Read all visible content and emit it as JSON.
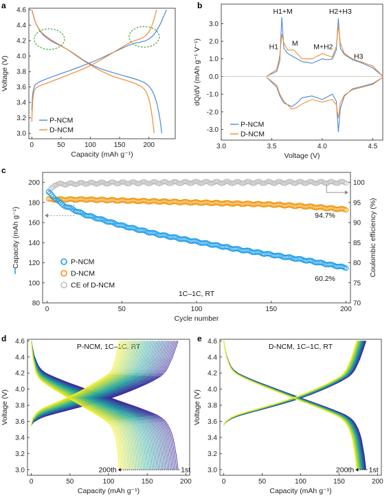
{
  "panel_letters": {
    "a": "a",
    "b": "b",
    "c": "c",
    "d": "d",
    "e": "e"
  },
  "colors": {
    "p_ncm": "#4a86d8",
    "d_ncm": "#ef8a2e",
    "p_ncm_marker": "#1a9be8",
    "d_ncm_marker": "#f0960a",
    "ce_marker": "#bdbdbd",
    "circle_highlight": "#3aa33a",
    "cycle_start": "#3b1f9a",
    "cycle_mid": "#1fa6a0",
    "cycle_end": "#f2ee1c"
  },
  "chart_data": [
    {
      "panel": "a",
      "type": "line",
      "xlabel": "Capacity (mAh g⁻¹)",
      "ylabel": "Voltage (V)",
      "xlim": [
        -5,
        245
      ],
      "ylim": [
        2.93,
        4.62
      ],
      "xticks": [
        0,
        50,
        100,
        150,
        200
      ],
      "yticks": [
        3.0,
        3.2,
        3.4,
        3.6,
        3.8,
        4.0,
        4.2,
        4.4,
        4.6
      ],
      "legend": {
        "position": "bottom-left",
        "entries": [
          "P-NCM",
          "D-NCM"
        ]
      },
      "series": [
        {
          "name": "P-NCM",
          "branch": "charge",
          "capacity": [
            0,
            2,
            10,
            30,
            60,
            100,
            140,
            170,
            185,
            200,
            215,
            230
          ],
          "voltage": [
            3.3,
            3.6,
            3.66,
            3.72,
            3.8,
            3.91,
            4.05,
            4.16,
            4.18,
            4.21,
            4.33,
            4.6
          ]
        },
        {
          "name": "P-NCM",
          "branch": "discharge",
          "capacity": [
            0,
            10,
            30,
            60,
            100,
            140,
            170,
            190,
            200,
            210,
            218,
            222
          ],
          "voltage": [
            4.6,
            4.34,
            4.2,
            4.1,
            3.88,
            3.78,
            3.72,
            3.67,
            3.62,
            3.5,
            3.25,
            3.0
          ]
        },
        {
          "name": "D-NCM",
          "branch": "charge",
          "capacity": [
            0,
            2,
            10,
            30,
            60,
            100,
            140,
            170,
            185,
            195,
            205,
            213
          ],
          "voltage": [
            3.15,
            3.55,
            3.61,
            3.66,
            3.75,
            3.87,
            4.05,
            4.19,
            4.22,
            4.26,
            4.37,
            4.6
          ]
        },
        {
          "name": "D-NCM",
          "branch": "discharge",
          "capacity": [
            0,
            8,
            25,
            55,
            95,
            135,
            165,
            185,
            195,
            202,
            206,
            209
          ],
          "voltage": [
            4.6,
            4.38,
            4.24,
            4.12,
            3.9,
            3.74,
            3.68,
            3.62,
            3.56,
            3.4,
            3.2,
            3.0
          ]
        }
      ],
      "annotations": [
        {
          "type": "dashed-ellipse",
          "capacity": 30,
          "voltage": 4.22
        },
        {
          "type": "dashed-ellipse",
          "capacity": 192,
          "voltage": 4.25
        }
      ]
    },
    {
      "panel": "b",
      "type": "line",
      "xlabel": "Voltage (V)",
      "ylabel": "dQ/dV (mAh g⁻¹ V⁻¹)",
      "xlim": [
        3.0,
        4.6
      ],
      "ylim": [
        -3.6,
        4.1
      ],
      "xticks": [
        3.0,
        3.5,
        4.0,
        4.5
      ],
      "yticks": [
        -3.0,
        -2.0,
        -1.0,
        0,
        1.0,
        2.0,
        3.0
      ],
      "legend": {
        "position": "bottom-left",
        "entries": [
          "P-NCM",
          "D-NCM"
        ]
      },
      "peak_labels": [
        {
          "text": "H1+M",
          "voltage": 3.61,
          "value": 3.55
        },
        {
          "text": "H1",
          "voltage": 3.52,
          "value": 1.55
        },
        {
          "text": "M",
          "voltage": 3.73,
          "value": 1.75
        },
        {
          "text": "M+H2",
          "voltage": 4.01,
          "value": 1.55
        },
        {
          "text": "H2+H3",
          "voltage": 4.18,
          "value": 3.55
        },
        {
          "text": "H3",
          "voltage": 4.36,
          "value": 1.0
        }
      ],
      "series": [
        {
          "name": "P-NCM",
          "branch": "charge",
          "voltage": [
            3.45,
            3.55,
            3.58,
            3.6,
            3.62,
            3.66,
            3.72,
            3.8,
            3.9,
            4.0,
            4.05,
            4.1,
            4.14,
            4.16,
            4.18,
            4.22,
            4.3,
            4.4,
            4.5,
            4.6
          ],
          "dqdv": [
            0.02,
            0.3,
            0.9,
            3.35,
            1.6,
            1.3,
            1.1,
            0.85,
            0.75,
            1.0,
            0.95,
            1.0,
            1.5,
            3.3,
            1.6,
            1.25,
            0.95,
            0.75,
            0.5,
            0.02
          ]
        },
        {
          "name": "P-NCM",
          "branch": "discharge",
          "voltage": [
            4.6,
            4.5,
            4.4,
            4.3,
            4.22,
            4.18,
            4.16,
            4.14,
            4.1,
            4.0,
            3.9,
            3.8,
            3.75,
            3.7,
            3.62,
            3.58,
            3.55,
            3.45
          ],
          "dqdv": [
            -0.05,
            -0.4,
            -0.55,
            -0.7,
            -1.1,
            -1.8,
            -3.15,
            -1.4,
            -1.0,
            -1.3,
            -1.1,
            -1.2,
            -1.5,
            -1.7,
            -1.5,
            -1.1,
            -0.6,
            -0.05
          ]
        },
        {
          "name": "D-NCM",
          "branch": "charge",
          "voltage": [
            3.45,
            3.55,
            3.58,
            3.6,
            3.62,
            3.66,
            3.72,
            3.8,
            3.9,
            4.0,
            4.05,
            4.1,
            4.14,
            4.16,
            4.18,
            4.22,
            4.3,
            4.4,
            4.5,
            4.6
          ],
          "dqdv": [
            0.02,
            0.4,
            1.2,
            2.4,
            1.9,
            1.5,
            1.5,
            1.0,
            1.0,
            1.3,
            1.2,
            1.1,
            1.7,
            2.9,
            1.9,
            1.3,
            1.0,
            0.8,
            0.6,
            0.02
          ]
        },
        {
          "name": "D-NCM",
          "branch": "discharge",
          "voltage": [
            4.6,
            4.5,
            4.4,
            4.3,
            4.22,
            4.18,
            4.16,
            4.14,
            4.1,
            4.0,
            3.9,
            3.8,
            3.75,
            3.7,
            3.62,
            3.58,
            3.55,
            3.45
          ],
          "dqdv": [
            -0.05,
            -0.45,
            -0.6,
            -0.75,
            -1.05,
            -1.5,
            -2.35,
            -1.6,
            -1.3,
            -1.45,
            -1.3,
            -1.55,
            -1.75,
            -1.85,
            -1.4,
            -1.0,
            -0.5,
            -0.05
          ]
        }
      ]
    },
    {
      "panel": "c",
      "type": "scatter",
      "xlabel": "Cycle number",
      "ylabel": "Capacity (mAh g⁻¹)",
      "y2label": "Coulombic efficiency (%)",
      "xlim": [
        -3,
        203
      ],
      "ylim": [
        80,
        210
      ],
      "y2lim": [
        70,
        102.5
      ],
      "xticks": [
        0,
        50,
        100,
        150,
        200
      ],
      "yticks": [
        80,
        100,
        120,
        140,
        160,
        180,
        200
      ],
      "y2ticks": [
        70,
        75,
        80,
        85,
        90,
        95,
        100
      ],
      "legend": {
        "position": "bottom-left",
        "entries": [
          "P-NCM",
          "D-NCM",
          "CE of D-NCM"
        ]
      },
      "condition_label": "1C–1C, RT",
      "retention_labels": {
        "d_ncm": "94.7%",
        "p_ncm": "60.2%"
      },
      "series": [
        {
          "name": "P-NCM",
          "axis": "left",
          "cycle": [
            1,
            10,
            25,
            50,
            75,
            100,
            125,
            150,
            175,
            200
          ],
          "capacity": [
            190,
            178,
            168,
            157,
            148,
            141,
            134,
            128,
            122,
            115
          ]
        },
        {
          "name": "D-NCM",
          "axis": "left",
          "cycle": [
            1,
            25,
            50,
            75,
            100,
            125,
            150,
            175,
            200
          ],
          "capacity": [
            183,
            183,
            182,
            181,
            180,
            179,
            178,
            176,
            173
          ]
        },
        {
          "name": "CE of D-NCM",
          "axis": "right",
          "cycle": [
            1,
            5,
            25,
            50,
            100,
            150,
            200
          ],
          "ce": [
            97.5,
            99.5,
            99.8,
            99.9,
            100.0,
            100.0,
            100.0
          ]
        }
      ]
    },
    {
      "panel": "d",
      "type": "line",
      "title": "P-NCM, 1C–1C, RT",
      "xlabel": "Capacity (mAh g⁻¹)",
      "ylabel": "Voltage (V)",
      "xlim": [
        -5,
        205
      ],
      "ylim": [
        2.93,
        4.62
      ],
      "xticks": [
        0,
        50,
        100,
        150,
        200
      ],
      "yticks": [
        3.0,
        3.2,
        3.4,
        3.6,
        3.8,
        4.0,
        4.2,
        4.4,
        4.6
      ],
      "color_gradient": [
        "#3b1f9a",
        "#1fa6a0",
        "#f2ee1c"
      ],
      "first_cycle": {
        "label": "1st",
        "discharge_capacity": 190
      },
      "last_cycle": {
        "label": "200th",
        "discharge_capacity": 114
      }
    },
    {
      "panel": "e",
      "type": "line",
      "title": "D-NCM, 1C–1C, RT",
      "xlabel": "Capacity (mAh g⁻¹)",
      "ylabel": "Voltage (V)",
      "xlim": [
        -5,
        205
      ],
      "ylim": [
        2.93,
        4.62
      ],
      "xticks": [
        0,
        50,
        100,
        150,
        200
      ],
      "yticks": [
        3.0,
        3.2,
        3.4,
        3.6,
        3.8,
        4.0,
        4.2,
        4.4,
        4.6
      ],
      "color_gradient": [
        "#3b1f9a",
        "#1fa6a0",
        "#f2ee1c"
      ],
      "first_cycle": {
        "label": "1st",
        "discharge_capacity": 185
      },
      "last_cycle": {
        "label": "200th",
        "discharge_capacity": 173
      }
    }
  ]
}
